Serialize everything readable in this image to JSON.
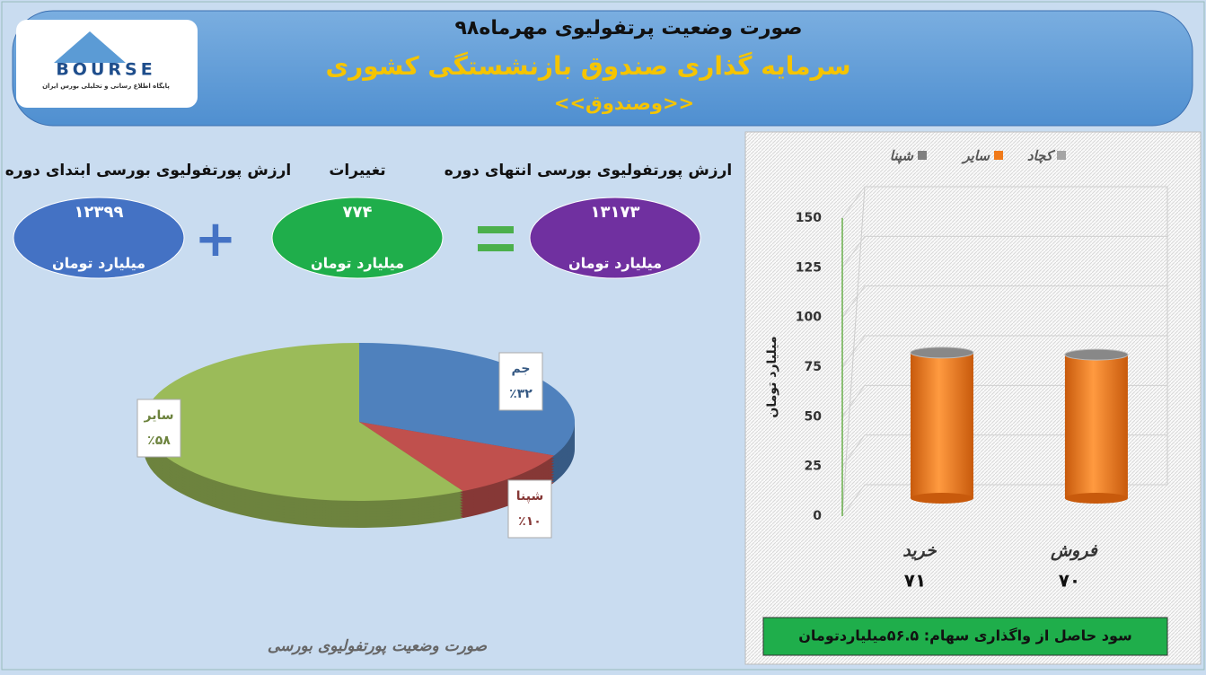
{
  "header": {
    "title": "صورت وضعیت پرتفولیوی مهرماه۹۸",
    "subtitle": "سرمایه گذاری صندوق بازنشستگی کشوری",
    "fund": "<<وصندوق>>",
    "logo": "BOURSE",
    "logo_caption": "پایگاه اطلاع رسانی و تحلیلی بورس ایران"
  },
  "summary": [
    {
      "label": "ارزش پورتفولیوی بورسی ابتدای دوره",
      "value": "۱۲۳۹۹",
      "unit": "میلیارد تومان",
      "color": "#4472c4"
    },
    {
      "label": "تغییرات",
      "value": "۷۷۴",
      "unit": "میلیارد تومان",
      "color": "#1fae4b"
    },
    {
      "label": "ارزش پورتفولیوی بورسی انتهای دوره",
      "value": "۱۳۱۷۳",
      "unit": "میلیارد تومان",
      "color": "#7030a0"
    }
  ],
  "chart_data": [
    {
      "type": "pie",
      "title": "صورت وضعیت پورتفولیوی بورسی",
      "categories": [
        "جم",
        "شپنا",
        "سایر"
      ],
      "values": [
        32,
        10,
        58
      ],
      "value_labels": [
        "٪۳۲",
        "٪۱۰",
        "٪۵۸"
      ],
      "colors": [
        "#4f81bd",
        "#c0504d",
        "#9bbb59"
      ]
    },
    {
      "type": "bar",
      "y_label": "میلیارد تومان",
      "categories": [
        "خرید",
        "فروش"
      ],
      "series": [
        {
          "name": "کچاد",
          "color": "#a5a5a5",
          "values": [
            null,
            null
          ]
        },
        {
          "name": "سایر",
          "color": "#f07a1a",
          "values": [
            71,
            70
          ],
          "value_labels": [
            "۷۱",
            "۷۰"
          ]
        },
        {
          "name": "شپنا",
          "color": "#7f7f7f",
          "values": [
            null,
            null
          ]
        }
      ],
      "ylim": [
        0,
        150
      ],
      "yticks": [
        0,
        25,
        50,
        75,
        100,
        125,
        150
      ],
      "grid": true,
      "legend": "top",
      "footer": "سود حاصل از واگذاری سهام: ۵۶.۵میلیاردتومان"
    }
  ]
}
